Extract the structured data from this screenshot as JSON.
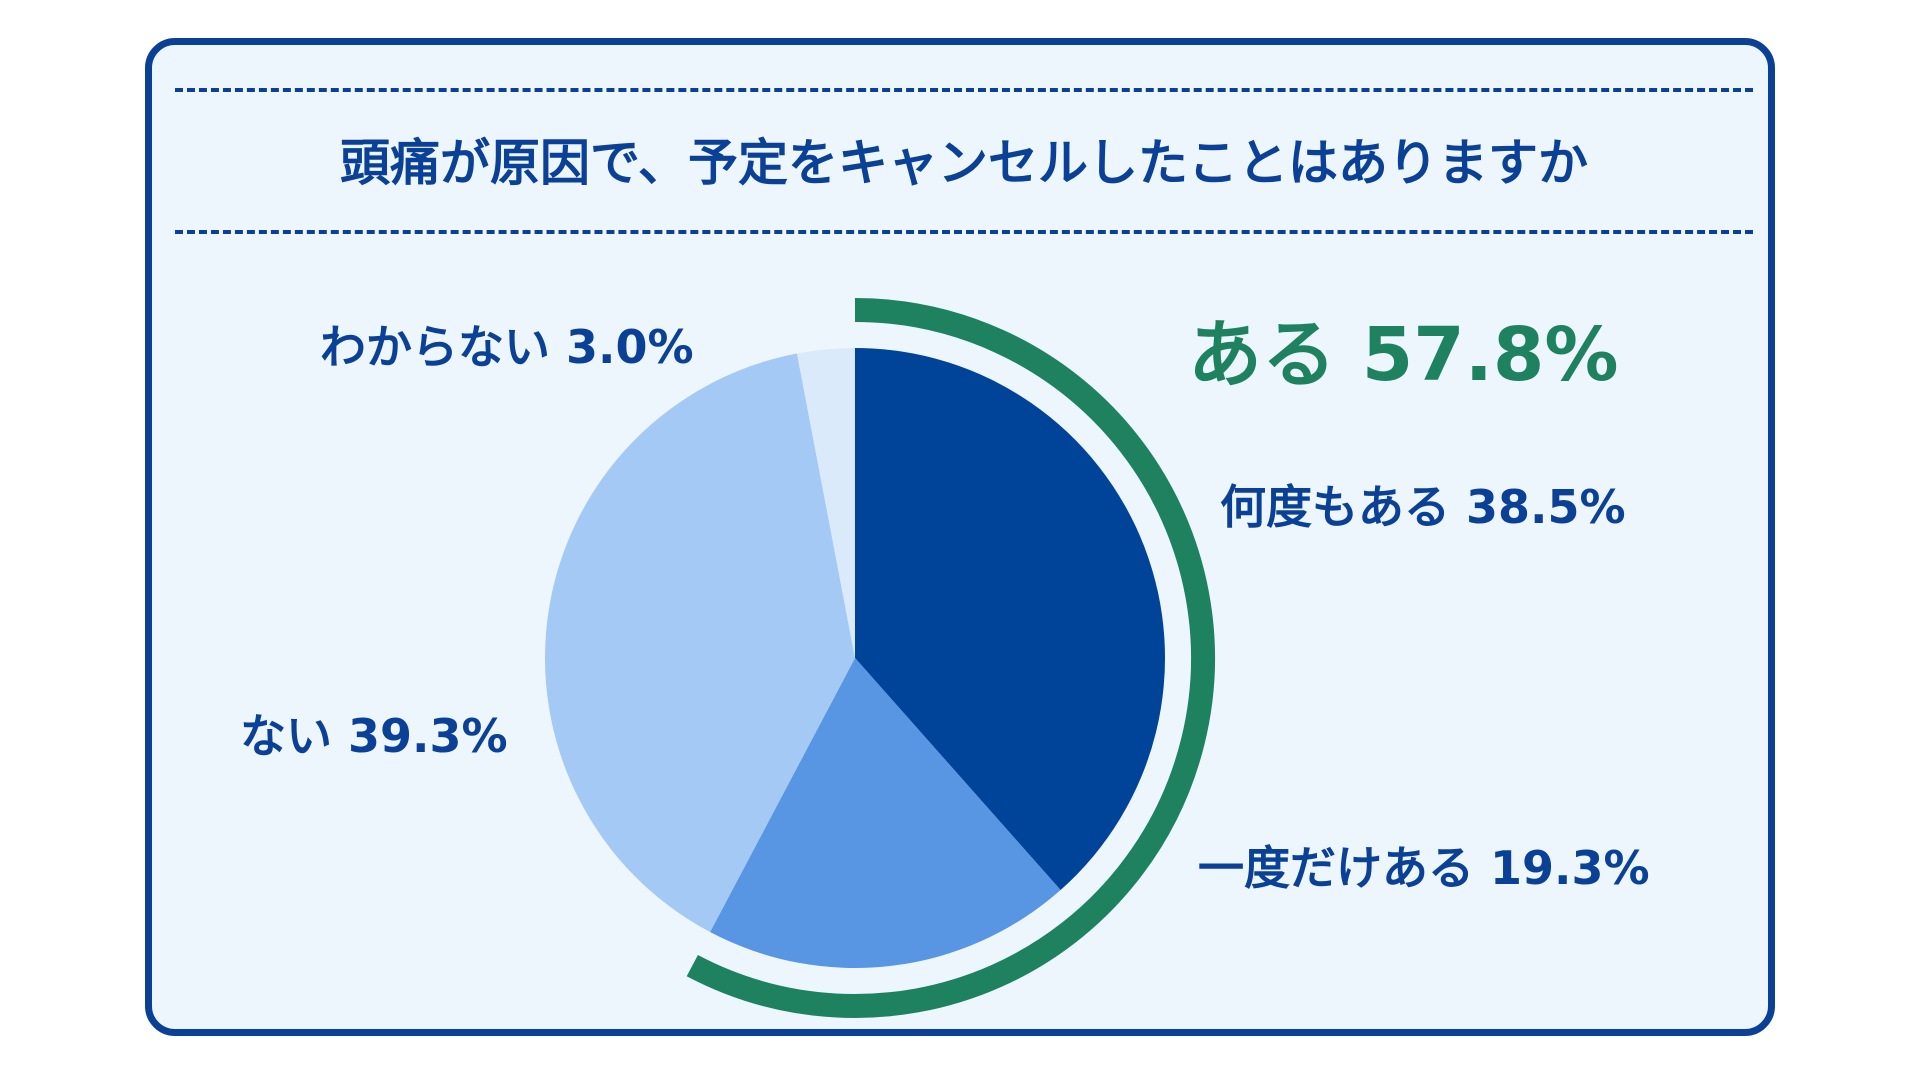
{
  "title": "頭痛が原因で、予定をキャンセルしたことはありますか",
  "colors": {
    "border": "#0a4196",
    "card_background": "#eef6fd",
    "slice_many_times": "#00449a",
    "slice_once": "#5895e2",
    "slice_no": "#a4c9f4",
    "slice_unknown": "#dbeafb",
    "highlight_arc": "#1e8261",
    "label_text": "#0a4196",
    "highlight_text": "#1e8261"
  },
  "chart_data": {
    "type": "pie",
    "title": "頭痛が原因で、予定をキャンセルしたことはありますか",
    "start_angle": "12 o'clock",
    "direction": "clockwise",
    "slices": [
      {
        "label": "何度もある",
        "value": 38.5,
        "value_text": "38.5%"
      },
      {
        "label": "一度だけある",
        "value": 19.3,
        "value_text": "19.3%"
      },
      {
        "label": "ない",
        "value": 39.3,
        "value_text": "39.3%"
      },
      {
        "label": "わからない",
        "value": 3.0,
        "value_text": "3.0%"
      }
    ],
    "highlight_group": {
      "label": "ある",
      "value": 57.8,
      "value_text": "57.8%",
      "includes": [
        "何度もある",
        "一度だけある"
      ]
    },
    "labels": {
      "many_times": "何度もある 38.5%",
      "once": "一度だけある 19.3%",
      "no": "ない 39.3%",
      "unknown": "わからない 3.0%",
      "group": "ある 57.8%"
    }
  }
}
